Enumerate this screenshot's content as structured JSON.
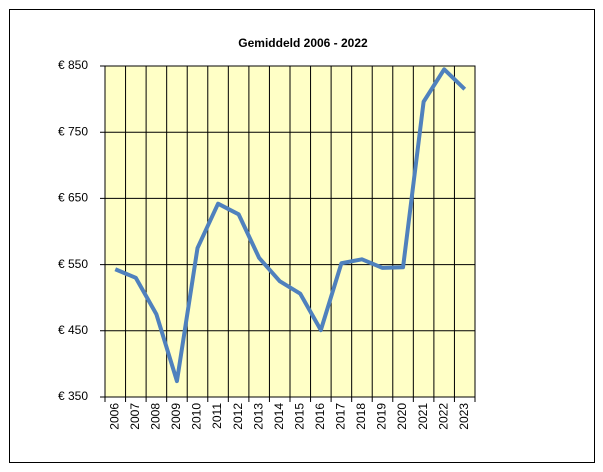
{
  "chart_data": {
    "type": "line",
    "title": "Gemiddeld 2006 - 2022",
    "categories": [
      "2006",
      "2007",
      "2008",
      "2009",
      "2010",
      "2011",
      "2012",
      "2013",
      "2014",
      "2015",
      "2016",
      "2017",
      "2018",
      "2019",
      "2020",
      "2021",
      "2022",
      "2023"
    ],
    "series": [
      {
        "name": "Gemiddeld",
        "color": "#4f81bd",
        "values": [
          543,
          530,
          475,
          374,
          575,
          642,
          626,
          560,
          525,
          506,
          451,
          552,
          558,
          545,
          546,
          796,
          845,
          815
        ]
      }
    ],
    "ylim": [
      350,
      850
    ],
    "yticks": [
      {
        "value": 350,
        "label": "€ 350"
      },
      {
        "value": 450,
        "label": "€ 450"
      },
      {
        "value": 550,
        "label": "€ 550"
      },
      {
        "value": 650,
        "label": "€ 650"
      },
      {
        "value": 750,
        "label": "€ 750"
      },
      {
        "value": 850,
        "label": "€ 850"
      }
    ],
    "grid": true,
    "plot_background": "#ffffc6"
  }
}
